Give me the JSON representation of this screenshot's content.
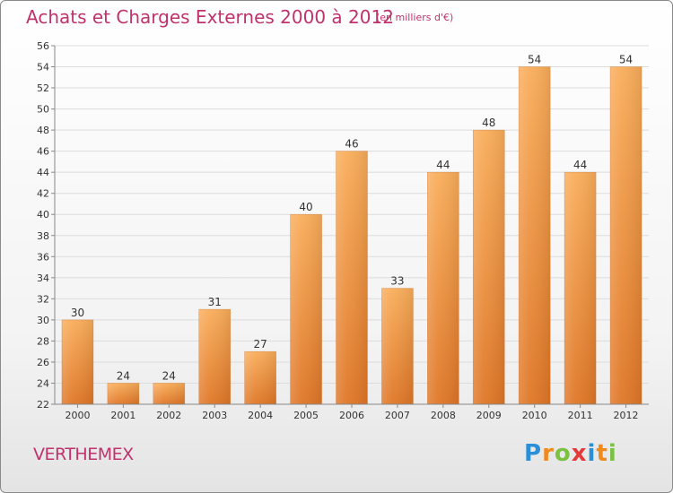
{
  "header": {
    "title": "Achats et Charges Externes 2000 à 2012",
    "subtitle": "(en milliers d'€)"
  },
  "footer": {
    "commune": "VERTHEMEX",
    "logo_letters": [
      "P",
      "r",
      "o",
      "x",
      "i",
      "t",
      "i"
    ],
    "logo_colors": [
      "#2a8fd6",
      "#f08a1c",
      "#7cc242",
      "#e23b3b",
      "#2a8fd6",
      "#f08a1c",
      "#7cc242"
    ]
  },
  "chart_data": {
    "type": "bar",
    "categories": [
      "2000",
      "2001",
      "2002",
      "2003",
      "2004",
      "2005",
      "2006",
      "2007",
      "2008",
      "2009",
      "2010",
      "2011",
      "2012"
    ],
    "values": [
      30,
      24,
      24,
      31,
      27,
      40,
      46,
      33,
      44,
      48,
      54,
      44,
      54
    ],
    "data_labels": [
      "30",
      "24",
      "24",
      "31",
      "27",
      "40",
      "46",
      "33",
      "44",
      "48",
      "54",
      "44",
      "54"
    ],
    "ylim": [
      22,
      56
    ],
    "yticks": [
      "22",
      "24",
      "26",
      "28",
      "30",
      "32",
      "34",
      "36",
      "38",
      "40",
      "42",
      "44",
      "46",
      "48",
      "50",
      "52",
      "54",
      "56"
    ],
    "grid": true,
    "colors": {
      "bar_light": "#f7a650",
      "bar_dark": "#e0782a",
      "grid": "#dcdcdc",
      "axis": "#888888"
    }
  }
}
